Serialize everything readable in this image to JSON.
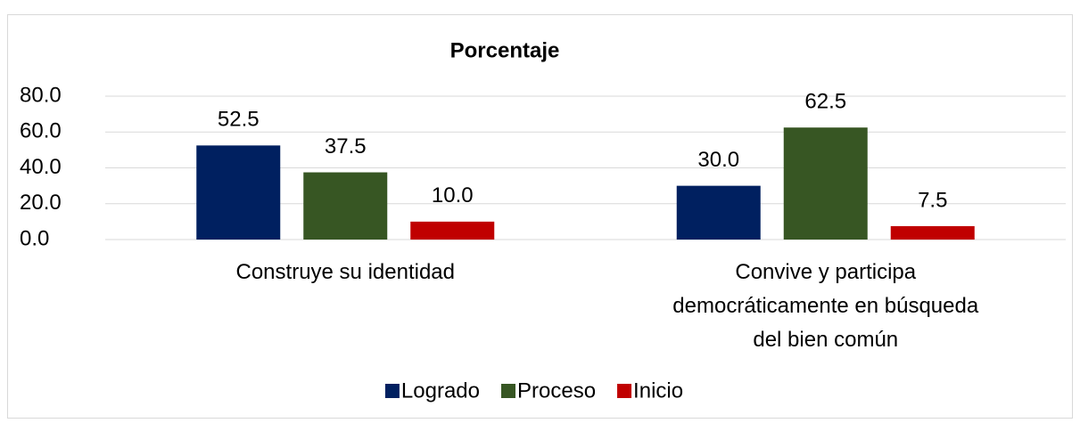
{
  "chart_data": {
    "type": "bar",
    "title": "Porcentaje",
    "categories": [
      "Construye su identidad",
      "Convive y participa democráticamente en búsqueda del bien común"
    ],
    "series": [
      {
        "name": "Logrado",
        "color": "#002060",
        "values": [
          52.5,
          30.0
        ],
        "value_labels": [
          "52.5",
          "30.0"
        ]
      },
      {
        "name": "Proceso",
        "color": "#375623",
        "values": [
          37.5,
          62.5
        ],
        "value_labels": [
          "37.5",
          "62.5"
        ]
      },
      {
        "name": "Inicio",
        "color": "#c00000",
        "values": [
          10.0,
          7.5
        ],
        "value_labels": [
          "10.0",
          "7.5"
        ]
      }
    ],
    "ylim": [
      0,
      80
    ],
    "yticks": [
      {
        "value": 0,
        "label": "0.0"
      },
      {
        "value": 20,
        "label": "20.0"
      },
      {
        "value": 40,
        "label": "40.0"
      },
      {
        "value": 60,
        "label": "60.0"
      },
      {
        "value": 80,
        "label": "80.0"
      }
    ],
    "grid": true,
    "legend": "bottom"
  }
}
